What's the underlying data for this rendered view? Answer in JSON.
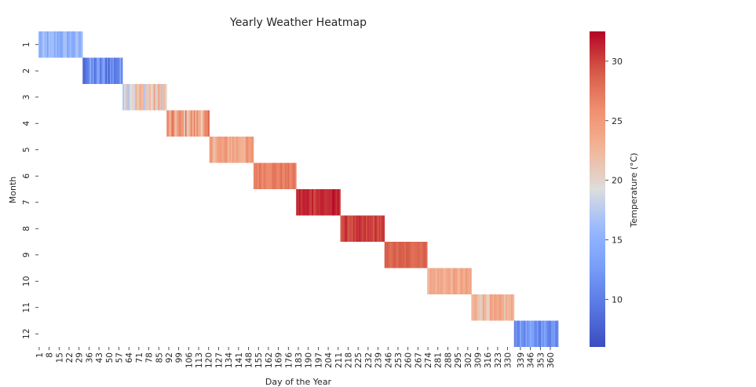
{
  "chart_data": {
    "type": "heatmap",
    "title": "Yearly Weather Heatmap",
    "xlabel": "Day of the Year",
    "ylabel": "Month",
    "colorbar_label": "Temperature (°C)",
    "colormap": "coolwarm",
    "value_range": [
      6,
      32.5
    ],
    "colorbar_ticks": [
      10,
      15,
      20,
      25,
      30
    ],
    "y_categories": [
      "1",
      "2",
      "3",
      "4",
      "5",
      "6",
      "7",
      "8",
      "9",
      "10",
      "11",
      "12"
    ],
    "x_tick_labels": [
      "1",
      "8",
      "15",
      "22",
      "29",
      "36",
      "43",
      "50",
      "57",
      "64",
      "71",
      "78",
      "85",
      "92",
      "99",
      "106",
      "113",
      "120",
      "127",
      "134",
      "141",
      "148",
      "155",
      "162",
      "169",
      "176",
      "183",
      "190",
      "197",
      "204",
      "211",
      "218",
      "225",
      "232",
      "239",
      "246",
      "253",
      "260",
      "267",
      "274",
      "281",
      "288",
      "295",
      "302",
      "309",
      "316",
      "323",
      "330",
      "339",
      "346",
      "353",
      "360"
    ],
    "x_tick_days": [
      1,
      8,
      15,
      22,
      29,
      36,
      43,
      50,
      57,
      64,
      71,
      78,
      85,
      92,
      99,
      106,
      113,
      120,
      127,
      134,
      141,
      148,
      155,
      162,
      169,
      176,
      183,
      190,
      197,
      204,
      211,
      218,
      225,
      232,
      239,
      246,
      253,
      260,
      267,
      274,
      281,
      288,
      295,
      302,
      309,
      316,
      323,
      330,
      339,
      346,
      353,
      360
    ],
    "total_days": 365,
    "months": [
      {
        "month": 1,
        "start_day": 1,
        "days": 31,
        "mean_temp": 15,
        "variation": 1.5
      },
      {
        "month": 2,
        "start_day": 32,
        "days": 28,
        "mean_temp": 11,
        "variation": 2.5
      },
      {
        "month": 3,
        "start_day": 60,
        "days": 31,
        "mean_temp": 21,
        "variation": 2.5
      },
      {
        "month": 4,
        "start_day": 91,
        "days": 30,
        "mean_temp": 24,
        "variation": 2.5
      },
      {
        "month": 5,
        "start_day": 121,
        "days": 31,
        "mean_temp": 24,
        "variation": 1.5
      },
      {
        "month": 6,
        "start_day": 152,
        "days": 30,
        "mean_temp": 27,
        "variation": 0.7
      },
      {
        "month": 7,
        "start_day": 182,
        "days": 31,
        "mean_temp": 31,
        "variation": 0.8
      },
      {
        "month": 8,
        "start_day": 213,
        "days": 31,
        "mean_temp": 30,
        "variation": 0.7
      },
      {
        "month": 9,
        "start_day": 244,
        "days": 30,
        "mean_temp": 28.5,
        "variation": 0.5
      },
      {
        "month": 10,
        "start_day": 274,
        "days": 31,
        "mean_temp": 23.5,
        "variation": 1.0
      },
      {
        "month": 11,
        "start_day": 305,
        "days": 30,
        "mean_temp": 22.5,
        "variation": 1.5
      },
      {
        "month": 12,
        "start_day": 335,
        "days": 31,
        "mean_temp": 12,
        "variation": 1.5
      }
    ]
  }
}
